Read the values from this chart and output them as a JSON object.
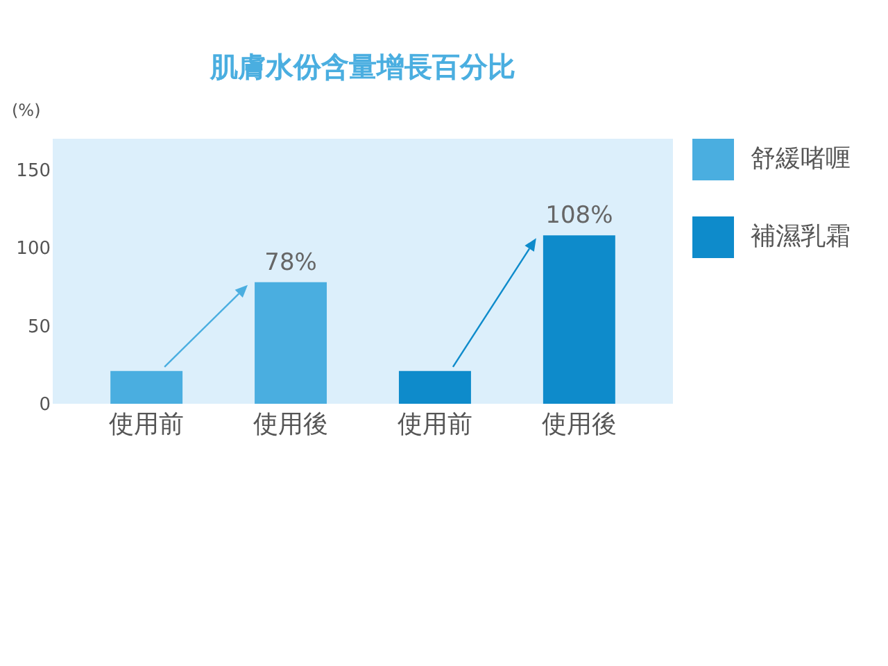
{
  "chart_data": {
    "type": "bar",
    "title": "肌膚水份含量增長百分比",
    "ylabel": "(%)",
    "categories": [
      "使用前",
      "使用後",
      "使用前",
      "使用後"
    ],
    "series": [
      {
        "name": "舒緩啫喱",
        "color": "#4aaee0",
        "values": [
          21,
          78,
          null,
          null
        ],
        "value_labels": [
          null,
          "78%",
          null,
          null
        ]
      },
      {
        "name": "補濕乳霜",
        "color": "#0e8bcb",
        "values": [
          null,
          null,
          21,
          108
        ],
        "value_labels": [
          null,
          null,
          null,
          "108%"
        ]
      }
    ],
    "ylim": [
      0,
      170
    ],
    "yticks": [
      0,
      50,
      100,
      150
    ],
    "grid": false,
    "legend": "right"
  }
}
